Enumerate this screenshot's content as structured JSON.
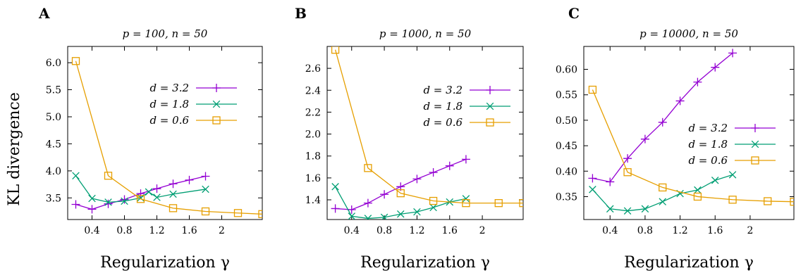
{
  "ylabel": "KL divergence",
  "colors": {
    "d32": "#9400d3",
    "d18": "#009e73",
    "d06": "#e69f00",
    "axis": "#000000"
  },
  "chart_data": [
    {
      "panel": "A",
      "type": "line",
      "title": "p = 100, n = 50",
      "xlabel": "Regularization γ",
      "xlim": [
        0.1,
        2.5
      ],
      "ylim": [
        3.1,
        6.3
      ],
      "xticks": [
        0.4,
        0.8,
        1.2,
        1.6,
        2
      ],
      "xtick_labels": [
        "0.4",
        "0.8",
        "1.2",
        "1.6",
        "2"
      ],
      "yticks": [
        3.5,
        4.0,
        4.5,
        5.0,
        5.5,
        6.0
      ],
      "ytick_labels": [
        "3.5",
        "4.0",
        "4.5",
        "5.0",
        "5.5",
        "6.0"
      ],
      "legend_position": "upper-right",
      "series": [
        {
          "name": "d = 3.2",
          "marker": "plus",
          "color": "#9400d3",
          "x": [
            0.2,
            0.4,
            0.6,
            0.8,
            1.0,
            1.2,
            1.4,
            1.6,
            1.8
          ],
          "y": [
            3.38,
            3.29,
            3.39,
            3.47,
            3.58,
            3.67,
            3.76,
            3.83,
            3.9
          ]
        },
        {
          "name": "d = 1.8",
          "marker": "x",
          "color": "#009e73",
          "x": [
            0.2,
            0.4,
            0.6,
            0.8,
            1.0,
            1.1,
            1.2,
            1.4,
            1.8
          ],
          "y": [
            3.91,
            3.49,
            3.42,
            3.44,
            3.5,
            3.61,
            3.51,
            3.57,
            3.66
          ]
        },
        {
          "name": "d = 0.6",
          "marker": "square",
          "color": "#e69f00",
          "x": [
            0.2,
            0.6,
            1.0,
            1.4,
            1.8,
            2.2,
            2.5
          ],
          "y": [
            6.03,
            3.91,
            3.48,
            3.31,
            3.25,
            3.22,
            3.2
          ]
        }
      ]
    },
    {
      "panel": "B",
      "type": "line",
      "title": "p = 1000, n = 50",
      "xlabel": "Regularization γ",
      "xlim": [
        0.1,
        2.5
      ],
      "ylim": [
        1.22,
        2.8
      ],
      "xticks": [
        0.4,
        0.8,
        1.2,
        1.6,
        2
      ],
      "xtick_labels": [
        "0.4",
        "0.8",
        "1.2",
        "1.6",
        "2"
      ],
      "yticks": [
        1.4,
        1.6,
        1.8,
        2.0,
        2.2,
        2.4,
        2.6
      ],
      "ytick_labels": [
        "1.4",
        "1.6",
        "1.8",
        "2.0",
        "2.2",
        "2.4",
        "2.6"
      ],
      "legend_position": "upper-right",
      "series": [
        {
          "name": "d = 3.2",
          "marker": "plus",
          "color": "#9400d3",
          "x": [
            0.2,
            0.4,
            0.6,
            0.8,
            1.0,
            1.2,
            1.4,
            1.6,
            1.8
          ],
          "y": [
            1.32,
            1.31,
            1.37,
            1.45,
            1.52,
            1.59,
            1.65,
            1.71,
            1.77
          ]
        },
        {
          "name": "d = 1.8",
          "marker": "x",
          "color": "#009e73",
          "x": [
            0.2,
            0.4,
            0.6,
            0.8,
            1.0,
            1.2,
            1.4,
            1.6,
            1.8
          ],
          "y": [
            1.52,
            1.25,
            1.23,
            1.24,
            1.27,
            1.29,
            1.33,
            1.38,
            1.41
          ]
        },
        {
          "name": "d = 0.6",
          "marker": "square",
          "color": "#e69f00",
          "x": [
            0.2,
            0.6,
            1.0,
            1.4,
            1.8,
            2.2,
            2.5
          ],
          "y": [
            2.77,
            1.69,
            1.46,
            1.39,
            1.37,
            1.37,
            1.37
          ]
        }
      ]
    },
    {
      "panel": "C",
      "type": "line",
      "title": "p = 10000, n = 50",
      "xlabel": "Regularization γ",
      "xlim": [
        0.1,
        2.5
      ],
      "ylim": [
        0.305,
        0.645
      ],
      "xticks": [
        0.4,
        0.8,
        1.2,
        1.6,
        2
      ],
      "xtick_labels": [
        "0.4",
        "0.8",
        "1.2",
        "1.6",
        "2"
      ],
      "yticks": [
        0.35,
        0.4,
        0.45,
        0.5,
        0.55,
        0.6
      ],
      "ytick_labels": [
        "0.35",
        "0.40",
        "0.45",
        "0.50",
        "0.55",
        "0.60"
      ],
      "legend_position": "middle-right",
      "series": [
        {
          "name": "d = 3.2",
          "marker": "plus",
          "color": "#9400d3",
          "x": [
            0.2,
            0.4,
            0.6,
            0.8,
            1.0,
            1.2,
            1.4,
            1.6,
            1.8
          ],
          "y": [
            0.386,
            0.379,
            0.425,
            0.463,
            0.496,
            0.538,
            0.575,
            0.604,
            0.632
          ]
        },
        {
          "name": "d = 1.8",
          "marker": "x",
          "color": "#009e73",
          "x": [
            0.2,
            0.4,
            0.6,
            0.8,
            1.0,
            1.2,
            1.4,
            1.6,
            1.8
          ],
          "y": [
            0.364,
            0.326,
            0.322,
            0.326,
            0.34,
            0.356,
            0.363,
            0.382,
            0.393
          ]
        },
        {
          "name": "d = 0.6",
          "marker": "square",
          "color": "#e69f00",
          "x": [
            0.2,
            0.6,
            1.0,
            1.4,
            1.8,
            2.2,
            2.5
          ],
          "y": [
            0.56,
            0.398,
            0.368,
            0.35,
            0.344,
            0.341,
            0.34
          ]
        }
      ]
    }
  ]
}
